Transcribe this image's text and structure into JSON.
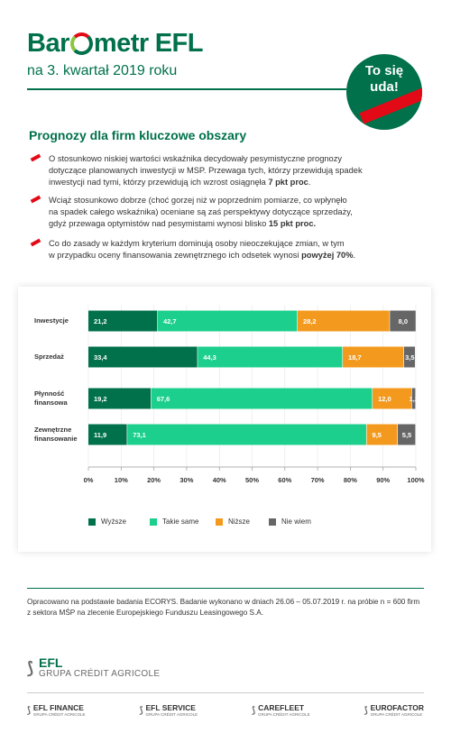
{
  "header": {
    "logo_part1": "Bar",
    "logo_part2": "metr",
    "logo_part3": "EFL",
    "subtitle": "na 3. kwartał 2019 roku",
    "badge_line1": "To się",
    "badge_line2": "uda!"
  },
  "section_title": "Prognozy dla firm kluczowe obszary",
  "bullets": [
    {
      "lines": [
        "O stosunkowo niskiej wartości wskaźnika decydowały pesymistyczne prognozy",
        "dotyczące planowanych inwestycji w MSP. Przewaga tych, którzy przewidują spadek"
      ],
      "last_plain": "inwestycji nad tymi, którzy przewidują ich wzrost osiągnęła ",
      "last_bold": "7 pkt proc",
      "last_after": "."
    },
    {
      "lines": [
        "Wciąż stosunkowo dobrze (choć gorzej niż w poprzednim pomiarze, co wpłynęło",
        "na spadek całego wskaźnika) oceniane są zaś perspektywy dotyczące sprzedaży,"
      ],
      "last_plain": "gdyż przewaga optymistów nad pesymistami wynosi blisko ",
      "last_bold": "15 pkt proc.",
      "last_after": ""
    },
    {
      "lines": [
        "Co do zasady w każdym kryterium dominują osoby nieoczekujące zmian, w tym"
      ],
      "last_plain": "w przypadku oceny finansowania zewnętrznego ich odsetek wynosi ",
      "last_bold": "powyżej 70%",
      "last_after": "."
    }
  ],
  "chart_data": {
    "type": "bar",
    "orientation": "horizontal",
    "stacked": true,
    "categories": [
      [
        "Inwestycje"
      ],
      [
        "Sprzedaż"
      ],
      [
        "Płynność",
        "finansowa"
      ],
      [
        "Zewnętrzne",
        "finansowanie"
      ]
    ],
    "series": [
      {
        "name": "Wyższe",
        "color": "#00714a",
        "values": [
          21.2,
          33.4,
          19.2,
          11.9
        ]
      },
      {
        "name": "Takie same",
        "color": "#1ccf8c",
        "values": [
          42.7,
          44.3,
          67.6,
          73.1
        ]
      },
      {
        "name": "Niższe",
        "color": "#f39a1e",
        "values": [
          28.2,
          18.7,
          12.0,
          9.5
        ]
      },
      {
        "name": "Nie wiem",
        "color": "#666666",
        "values": [
          8.0,
          3.5,
          1.2,
          5.5
        ]
      }
    ],
    "value_labels": [
      [
        "21,2",
        "42,7",
        "28,2",
        "8,0"
      ],
      [
        "33,4",
        "44,3",
        "18,7",
        "3,5"
      ],
      [
        "19,2",
        "67,6",
        "12,0",
        "1,2"
      ],
      [
        "11,9",
        "73,1",
        "9,5",
        "5,5"
      ]
    ],
    "x_ticks": [
      "0%",
      "10%",
      "20%",
      "30%",
      "40%",
      "50%",
      "60%",
      "70%",
      "80%",
      "90%",
      "100%"
    ],
    "xlim": [
      0,
      100
    ],
    "legend_position": "bottom"
  },
  "footer": {
    "text": "Opracowano na podstawie badania ECORYS. Badanie wykonano w dniach 26.06 – 05.07.2019 r. na próbie n = 600 firm z sektora MŚP na zlecenie Europejskiego Funduszu Leasingowego S.A."
  },
  "brand": {
    "name": "EFL",
    "group": "GRUPA CRÉDIT AGRICOLE",
    "sub_brands": [
      {
        "name": "EFL FINANCE",
        "group": "GRUPA CRÉDIT AGRICOLE"
      },
      {
        "name": "EFL SERVICE",
        "group": "GRUPA CRÉDIT AGRICOLE"
      },
      {
        "name": "CAREFLEET",
        "group": "GRUPA CRÉDIT AGRICOLE"
      },
      {
        "name": "EUROFACTOR",
        "group": "GRUPA CRÉDIT AGRICOLE"
      }
    ]
  }
}
